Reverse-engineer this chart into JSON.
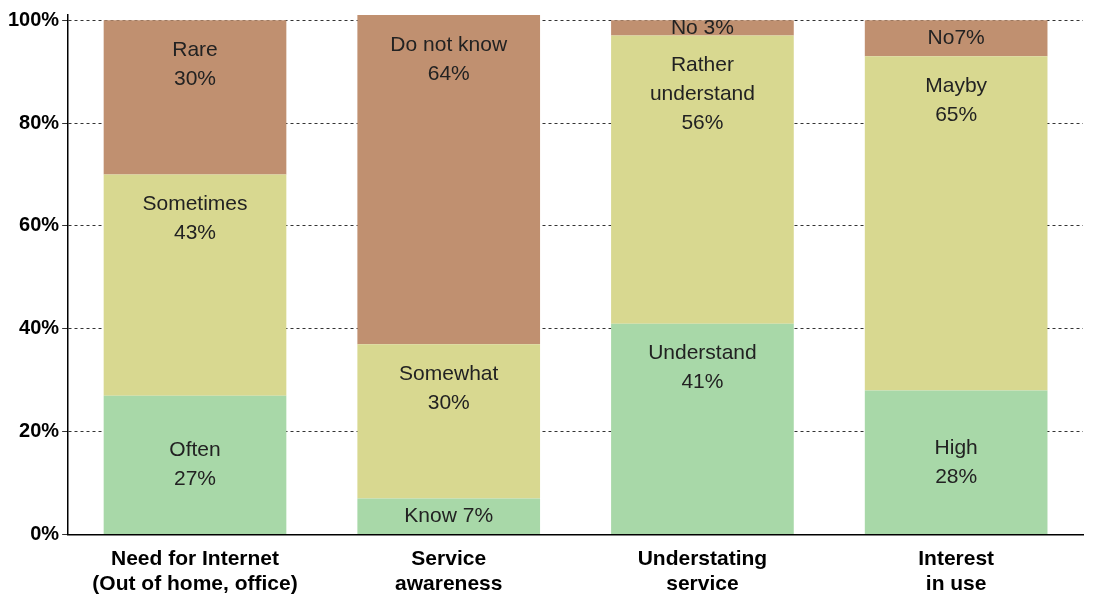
{
  "chart_data": {
    "type": "bar",
    "stacked": true,
    "categories": [
      "Need for Internet\n(Out of home, office)",
      "Service\nawareness",
      "Understating\nservice",
      "Interest\nin use"
    ],
    "series": [
      {
        "color": "#a8d8a8",
        "values": [
          27,
          7,
          41,
          28
        ],
        "value_labels": [
          "Often\n27%",
          "Know 7%",
          "Understand\n41%",
          "High\n28%"
        ]
      },
      {
        "color": "#d8d890",
        "values": [
          43,
          30,
          56,
          65
        ],
        "value_labels": [
          "Sometimes\n43%",
          "Somewhat\n30%",
          "Rather\nunderstand\n56%",
          "Mayby\n65%"
        ]
      },
      {
        "color": "#c09070",
        "values": [
          30,
          64,
          3,
          7
        ],
        "value_labels": [
          "Rare\n30%",
          "Do not know\n64%",
          "No 3%",
          "No7%"
        ]
      }
    ],
    "ylim": [
      0,
      101
    ],
    "yticks": [
      {
        "value": 0,
        "label": "0%"
      },
      {
        "value": 20,
        "label": "20%"
      },
      {
        "value": 40,
        "label": "40%"
      },
      {
        "value": 60,
        "label": "60%"
      },
      {
        "value": 80,
        "label": "80%"
      },
      {
        "value": 100,
        "label": "100%"
      }
    ],
    "grid": "y",
    "legend": false
  }
}
